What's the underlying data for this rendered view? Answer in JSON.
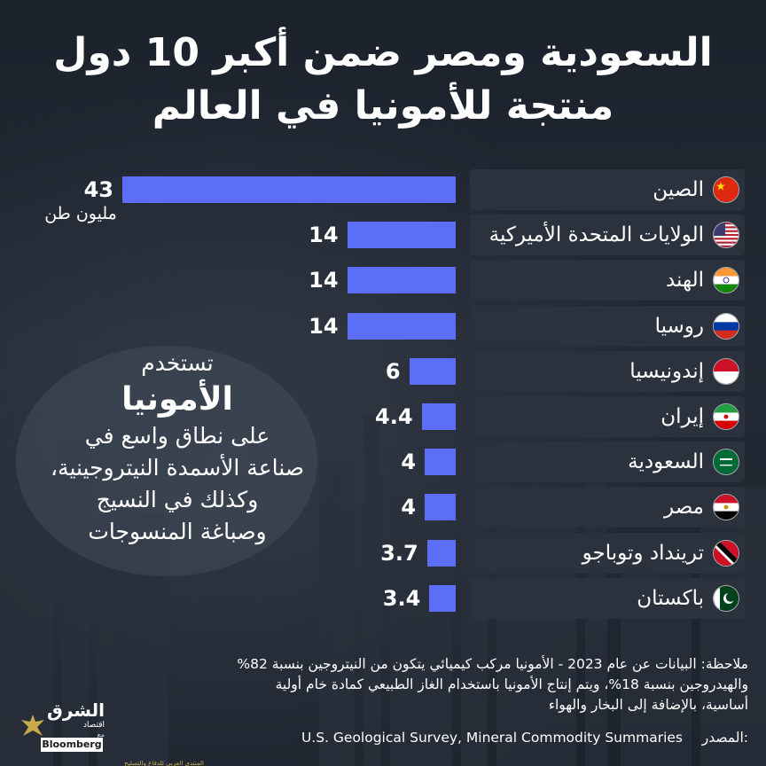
{
  "title": {
    "line1": "السعودية ومصر ضمن أكبر 10 دول",
    "line2": "منتجة للأمونيا في العالم"
  },
  "chart_data": {
    "type": "bar",
    "orientation": "horizontal",
    "categories": [
      "الصين",
      "الولايات المتحدة الأميركية",
      "الهند",
      "روسيا",
      "إندونيسيا",
      "إيران",
      "السعودية",
      "مصر",
      "ترينداد وتوباجو",
      "باكستان"
    ],
    "values": [
      43,
      14,
      14,
      14,
      6,
      4.4,
      4,
      4,
      3.7,
      3.4
    ],
    "value_labels": [
      "43",
      "14",
      "14",
      "14",
      "6",
      "4.4",
      "4",
      "4",
      "3.7",
      "3.4"
    ],
    "unit_label": "مليون طن",
    "bar_color": "#5b6ef5",
    "flag_icons": [
      "china-flag-icon",
      "usa-flag-icon",
      "india-flag-icon",
      "russia-flag-icon",
      "indonesia-flag-icon",
      "iran-flag-icon",
      "saudi-flag-icon",
      "egypt-flag-icon",
      "trinidad-flag-icon",
      "pakistan-flag-icon"
    ]
  },
  "info": {
    "line1": "تستخدم",
    "line2": "الأمونيا",
    "line3": "على نطاق واسع في",
    "line4": "صناعة الأسمدة النيتروجينية،",
    "line5": "وكذلك في النسيج",
    "line6": "وصباغة المنسوجات"
  },
  "note": {
    "line1": "ملاحظة: البيانات عن عام 2023 - الأمونيا مركب كيميائي يتكون من النيتروجين بنسبة 82%",
    "line2": "والهيدروجين بنسبة 18%، ويتم إنتاج الأمونيا باستخدام الغاز الطبيعي كمادة خام أولية",
    "line3": "أساسية، بالإضافة إلى البخار والهواء"
  },
  "source": {
    "label": "المصدر:",
    "text": "U.S. Geological Survey, Mineral Commodity Summaries"
  },
  "logo": {
    "name": "الشرق",
    "sub": "اقتصاد",
    "with": "مع",
    "partner": "Bloomberg",
    "tagline": "المنتدى العربي للدفاع والتسليح"
  }
}
